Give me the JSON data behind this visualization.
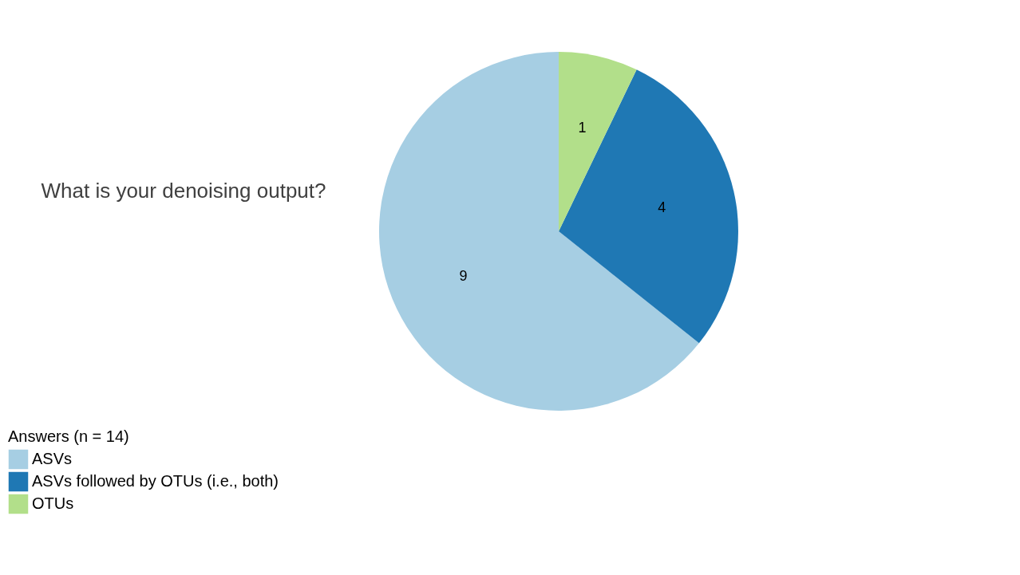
{
  "chart_data": {
    "type": "pie",
    "title": "What is your denoising output?",
    "legend_title": "Answers (n = 14)",
    "legend": "bottom",
    "categories": [
      "ASVs",
      "ASVs followed by OTUs (i.e., both)",
      "OTUs"
    ],
    "values": [
      9,
      4,
      1
    ],
    "colors": [
      "#a6cee3",
      "#1f78b4",
      "#b2df8a"
    ],
    "data_labels": true
  }
}
